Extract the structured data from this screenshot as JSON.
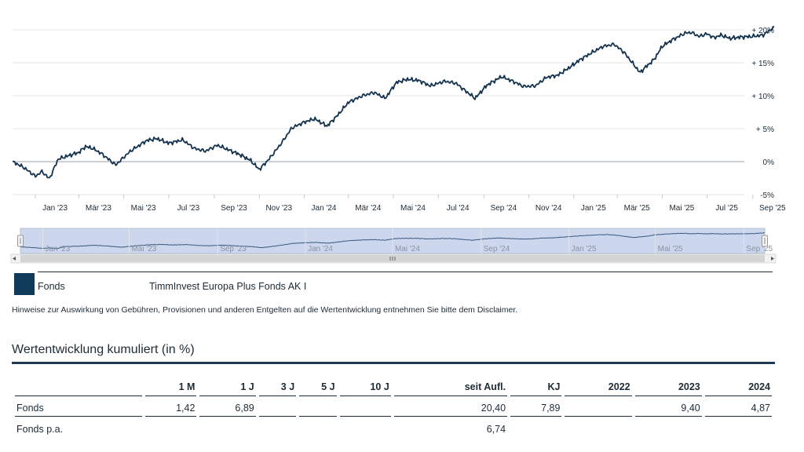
{
  "chart_data": {
    "type": "line",
    "series": [
      {
        "name": "Fonds",
        "x": [
          "2022-12-01",
          "2022-12-15",
          "2023-01-01",
          "2023-01-10",
          "2023-01-20",
          "2023-02-01",
          "2023-02-15",
          "2023-03-01",
          "2023-03-10",
          "2023-03-20",
          "2023-04-01",
          "2023-04-20",
          "2023-05-10",
          "2023-06-01",
          "2023-06-15",
          "2023-07-01",
          "2023-07-20",
          "2023-08-05",
          "2023-08-20",
          "2023-09-05",
          "2023-09-20",
          "2023-10-05",
          "2023-10-20",
          "2023-11-01",
          "2023-11-15",
          "2023-12-01",
          "2023-12-15",
          "2024-01-01",
          "2024-01-15",
          "2024-02-01",
          "2024-02-15",
          "2024-03-01",
          "2024-03-20",
          "2024-04-05",
          "2024-04-20",
          "2024-05-05",
          "2024-05-20",
          "2024-06-05",
          "2024-06-20",
          "2024-07-10",
          "2024-07-25",
          "2024-08-05",
          "2024-08-20",
          "2024-09-05",
          "2024-09-25",
          "2024-10-10",
          "2024-10-25",
          "2024-11-10",
          "2024-11-25",
          "2024-12-10",
          "2024-12-25",
          "2025-01-10",
          "2025-01-25",
          "2025-02-10",
          "2025-02-25",
          "2025-03-10",
          "2025-03-20",
          "2025-04-01",
          "2025-04-07",
          "2025-04-20",
          "2025-05-01",
          "2025-05-15",
          "2025-06-01",
          "2025-06-10",
          "2025-06-20",
          "2025-07-01",
          "2025-07-10",
          "2025-07-20",
          "2025-08-01",
          "2025-08-15",
          "2025-09-01",
          "2025-09-15",
          "2025-09-30"
        ],
        "values": [
          0.0,
          -0.8,
          -2.2,
          -1.5,
          -2.6,
          0.4,
          0.9,
          1.4,
          2.3,
          2.0,
          1.2,
          -0.5,
          1.6,
          3.2,
          3.5,
          2.8,
          3.3,
          2.0,
          1.6,
          2.5,
          1.8,
          1.1,
          0.2,
          -1.2,
          0.5,
          2.8,
          5.1,
          6.0,
          6.5,
          5.4,
          7.0,
          9.0,
          10.0,
          10.5,
          9.6,
          12.0,
          12.5,
          12.3,
          11.5,
          12.2,
          11.9,
          10.9,
          9.6,
          11.6,
          12.9,
          12.2,
          11.4,
          11.5,
          12.8,
          13.1,
          14.2,
          15.5,
          16.5,
          17.5,
          17.8,
          16.6,
          15.2,
          13.5,
          14.2,
          15.5,
          17.5,
          18.5,
          19.5,
          19.6,
          19.0,
          19.4,
          18.8,
          19.2,
          18.7,
          18.9,
          19.0,
          19.2,
          20.4
        ]
      }
    ],
    "ylim": [
      -5,
      20
    ],
    "y_ticks": [
      -5,
      0,
      5,
      10,
      15,
      20
    ],
    "y_tick_labels": [
      "-5%",
      "0%",
      "+ 5%",
      "+ 10%",
      "+ 15%",
      "+ 20%"
    ],
    "x_tick_labels": [
      "Jan '23",
      "Mär '23",
      "Mai '23",
      "Jul '23",
      "Sep '23",
      "Nov '23",
      "Jan '24",
      "Mär '24",
      "Mai '24",
      "Jul '24",
      "Sep '24",
      "Nov '24",
      "Jan '25",
      "Mär '25",
      "Mai '25",
      "Jul '25",
      "Sep '25"
    ],
    "navigator_labels": [
      "Jan '23",
      "Mai '23",
      "Sep '23",
      "Jan '24",
      "Mai '24",
      "Sep '24",
      "Jan '25",
      "Mai '25",
      "Sep '25"
    ],
    "grid": true,
    "legend": "bottom",
    "line_color": "#15334f",
    "navigator_fill": "#ccd6ec"
  },
  "legend": {
    "fund_label": "Fonds",
    "fund_name": "TimmInvest Europa Plus Fonds AK I"
  },
  "disclaimer": "Hinweise zur Auswirkung von Gebühren, Provisionen und anderen Entgelten auf die Wertentwicklung entnehmen Sie bitte dem Disclaimer.",
  "performance": {
    "title": "Wertentwicklung kumuliert (in %)",
    "headers": [
      "",
      "1 M",
      "1 J",
      "3 J",
      "5 J",
      "10 J",
      "seit Aufl.",
      "KJ",
      "2022",
      "2023",
      "2024"
    ],
    "rows": [
      [
        "Fonds",
        "1,42",
        "6,89",
        "",
        "",
        "",
        "20,40",
        "7,89",
        "",
        "9,40",
        "4,87"
      ],
      [
        "Fonds p.a.",
        "",
        "",
        "",
        "",
        "",
        "6,74",
        "",
        "",
        "",
        ""
      ]
    ]
  }
}
